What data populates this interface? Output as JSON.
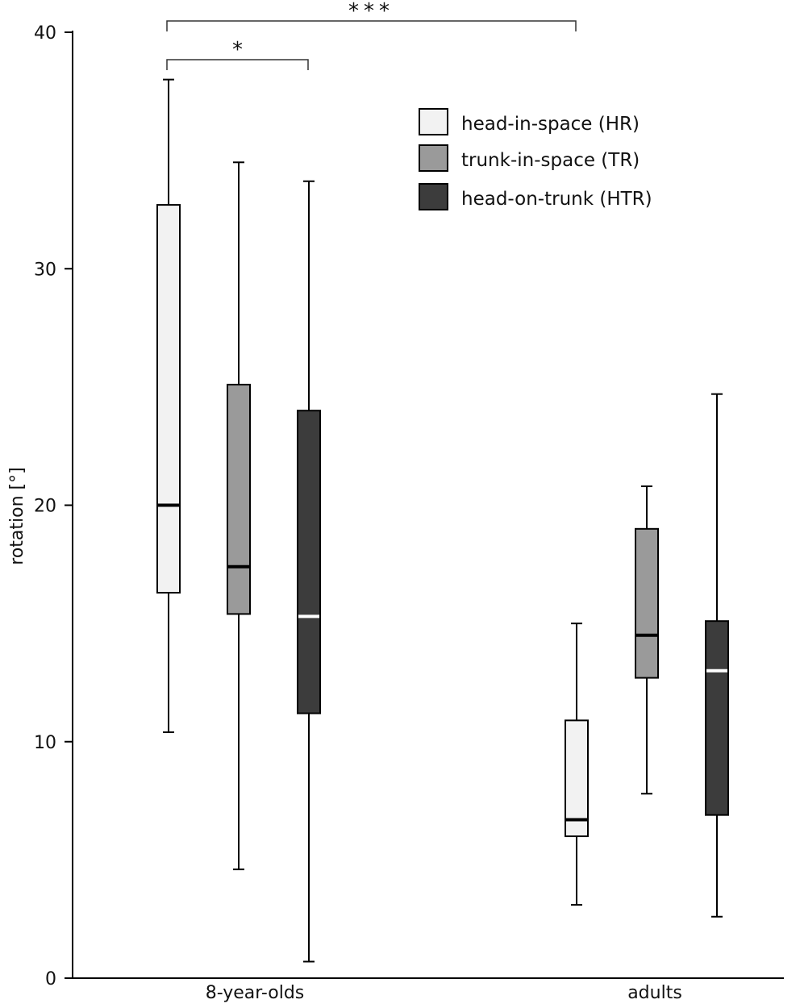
{
  "chart_data": {
    "type": "boxplot",
    "title": "",
    "xlabel": "",
    "ylabel": "rotation [°]",
    "ylim": [
      0,
      40
    ],
    "yticks": [
      "0",
      "10",
      "20",
      "30",
      "40"
    ],
    "categories": [
      "8-year-olds",
      "adults"
    ],
    "legend_position": "top-right",
    "series": [
      {
        "name": "head-in-space (HR)",
        "color": "#f2f2f2",
        "median_color": "#000000",
        "boxes": [
          {
            "min": 10.4,
            "q1": 16.3,
            "median": 20.0,
            "q3": 32.7,
            "max": 38.0
          },
          {
            "min": 3.1,
            "q1": 6.0,
            "median": 6.7,
            "q3": 10.9,
            "max": 15.0
          }
        ]
      },
      {
        "name": "trunk-in-space (TR)",
        "color": "#9a9a9a",
        "median_color": "#000000",
        "boxes": [
          {
            "min": 4.6,
            "q1": 15.4,
            "median": 17.4,
            "q3": 25.1,
            "max": 34.5
          },
          {
            "min": 7.8,
            "q1": 12.7,
            "median": 14.5,
            "q3": 19.0,
            "max": 20.8
          }
        ]
      },
      {
        "name": "head-on-trunk (HTR)",
        "color": "#3c3c3c",
        "median_color": "#ffffff",
        "boxes": [
          {
            "min": 0.7,
            "q1": 11.2,
            "median": 15.3,
            "q3": 24.0,
            "max": 33.7
          },
          {
            "min": 2.6,
            "q1": 6.9,
            "median": 13.0,
            "q3": 15.1,
            "max": 24.7
          }
        ]
      }
    ],
    "significance": [
      {
        "label": "***",
        "from_category": 0,
        "from_series": 0,
        "to_category": 1,
        "to_series": 0
      },
      {
        "label": "*",
        "from_category": 0,
        "from_series": 0,
        "to_category": 0,
        "to_series": 2
      }
    ]
  }
}
